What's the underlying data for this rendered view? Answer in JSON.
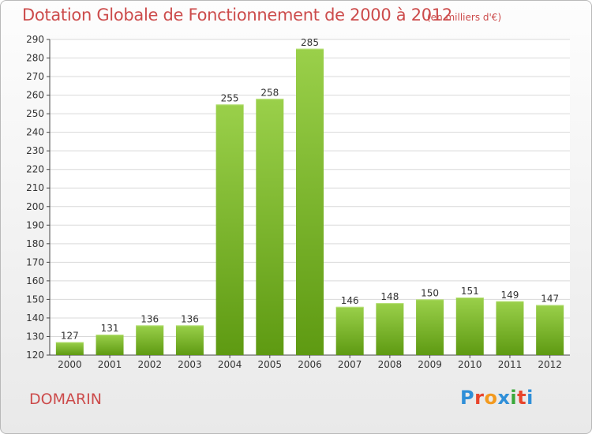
{
  "header": {
    "title": "Dotation Globale de Fonctionnement de 2000 à 2012",
    "subtitle": "(en milliers d'€)"
  },
  "footer": {
    "commune": "DOMARIN",
    "logo_letters": [
      "P",
      "r",
      "o",
      "x",
      "i",
      "t",
      "i"
    ]
  },
  "colors": {
    "title": "#cc4b4b",
    "bar_top": "#9ad04a",
    "bar_bottom": "#5e9a12",
    "grid": "#d9d9d9",
    "logo": [
      "#2f8fd8",
      "#e8452c",
      "#f39a1f",
      "#2f8fd8",
      "#3aa83a",
      "#e8452c",
      "#2f8fd8"
    ]
  },
  "chart_data": {
    "type": "bar",
    "title": "Dotation Globale de Fonctionnement de 2000 à 2012",
    "subtitle": "(en milliers d'€)",
    "categories": [
      "2000",
      "2001",
      "2002",
      "2003",
      "2004",
      "2005",
      "2006",
      "2007",
      "2008",
      "2009",
      "2010",
      "2011",
      "2012"
    ],
    "values": [
      127,
      131,
      136,
      136,
      255,
      258,
      285,
      146,
      148,
      150,
      151,
      149,
      147
    ],
    "ylim": [
      120,
      290
    ],
    "yticks": [
      120,
      130,
      140,
      150,
      160,
      170,
      180,
      190,
      200,
      210,
      220,
      230,
      240,
      250,
      260,
      270,
      280,
      290
    ],
    "grid": true,
    "xlabel": "",
    "ylabel": ""
  }
}
